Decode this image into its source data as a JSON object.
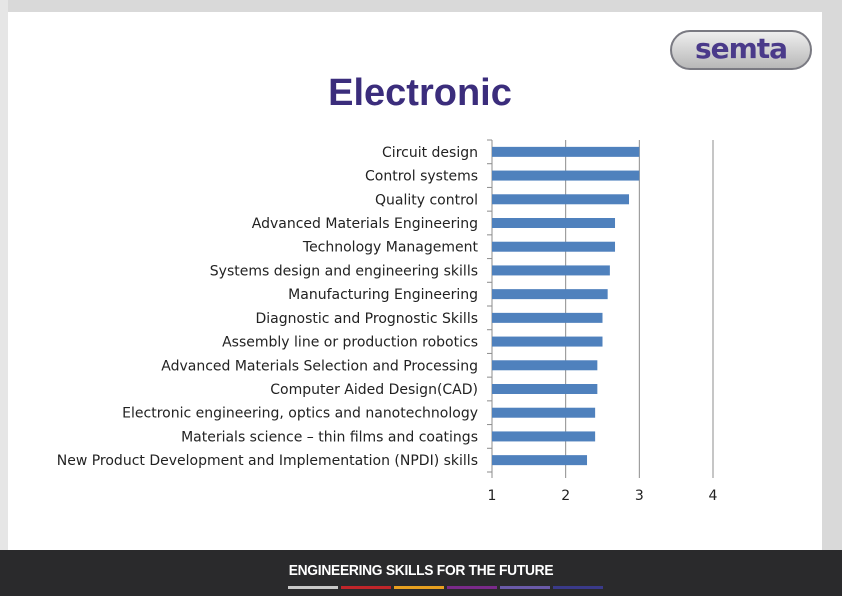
{
  "slide": {
    "title": "Electronic",
    "logo_text": "semta",
    "footer_text": "ENGINEERING SKILLS FOR THE FUTURE",
    "footer_stripe_colors": [
      "#c8c8c8",
      "#c0252a",
      "#e8a020",
      "#7a2a8a",
      "#6a5aa8",
      "#3a3a8a"
    ]
  },
  "chart_data": {
    "type": "bar",
    "orientation": "horizontal",
    "categories": [
      "Circuit design",
      "Control systems",
      "Quality control",
      "Advanced Materials Engineering",
      "Technology Management",
      "Systems design and engineering skills",
      "Manufacturing Engineering",
      "Diagnostic and Prognostic Skills",
      "Assembly line or production robotics",
      "Advanced Materials Selection and Processing",
      "Computer Aided Design(CAD)",
      "Electronic engineering, optics and nanotechnology",
      "Materials science – thin films and coatings",
      "New Product Development and Implementation (NPDI) skills"
    ],
    "values": [
      3.0,
      3.0,
      2.86,
      2.67,
      2.67,
      2.6,
      2.57,
      2.5,
      2.5,
      2.43,
      2.43,
      2.4,
      2.4,
      2.29
    ],
    "xlim": [
      1,
      4
    ],
    "x_ticks": [
      "1",
      "2",
      "3",
      "4"
    ],
    "bar_color": "#4f81bd",
    "grid": "vertical",
    "legend": "none"
  }
}
